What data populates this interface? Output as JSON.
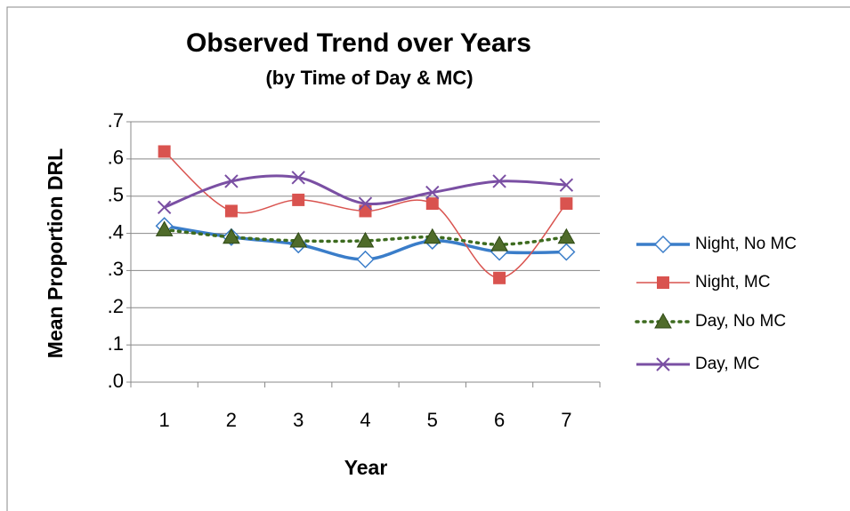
{
  "chart_data": {
    "type": "line",
    "title": "Observed Trend over Years",
    "subtitle": "(by Time of Day & MC)",
    "x_label": "Year",
    "y_label": "Mean Proportion  DRL",
    "categories": [
      "1",
      "2",
      "3",
      "4",
      "5",
      "6",
      "7"
    ],
    "series": [
      {
        "name": "Night, No MC",
        "color": "#3a7dc9",
        "marker": "diamond",
        "dash": "solid",
        "width": 3.5,
        "values": [
          0.42,
          0.39,
          0.37,
          0.33,
          0.38,
          0.35,
          0.35
        ]
      },
      {
        "name": "Night, MC",
        "color": "#d9534f",
        "marker": "square",
        "dash": "solid",
        "width": 1.5,
        "values": [
          0.62,
          0.46,
          0.49,
          0.46,
          0.48,
          0.28,
          0.48
        ]
      },
      {
        "name": "Day, No MC",
        "color": "#3d6b1f",
        "marker": "triangle",
        "dash": "dotted",
        "width": 3.5,
        "values": [
          0.41,
          0.39,
          0.38,
          0.38,
          0.39,
          0.37,
          0.39
        ]
      },
      {
        "name": "Day, MC",
        "color": "#7a4fa3",
        "marker": "x",
        "dash": "solid",
        "width": 3,
        "values": [
          0.47,
          0.54,
          0.55,
          0.48,
          0.51,
          0.54,
          0.53
        ]
      }
    ],
    "ylim": [
      0,
      0.7
    ],
    "yticks": [
      {
        "value": 0,
        "label": ".0"
      },
      {
        "value": 0.1,
        "label": ".1"
      },
      {
        "value": 0.2,
        "label": ".2"
      },
      {
        "value": 0.3,
        "label": ".3"
      },
      {
        "value": 0.4,
        "label": ".4"
      },
      {
        "value": 0.5,
        "label": ".5"
      },
      {
        "value": 0.6,
        "label": ".6"
      },
      {
        "value": 0.7,
        "label": ".7"
      }
    ],
    "grid": true,
    "smooth": true,
    "legend": "right"
  }
}
